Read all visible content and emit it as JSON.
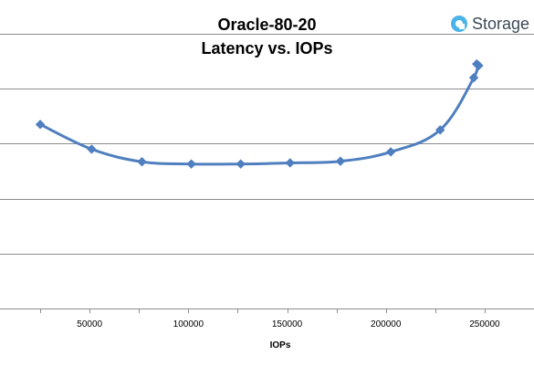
{
  "chart_data": {
    "type": "line",
    "title_lines": [
      "Oracle-80-20",
      "Latency vs. IOPs"
    ],
    "xlabel": "IOPs",
    "ylabel": "",
    "xlim": [
      0,
      275000
    ],
    "ylim": [
      0,
      5
    ],
    "x_ticks": [
      50000,
      100000,
      150000,
      200000,
      250000
    ],
    "y_gridlines": [
      1,
      2,
      3,
      4,
      5
    ],
    "grid": true,
    "legend": "none",
    "series": [
      {
        "color": "#4f7fbf",
        "points": [
          {
            "x": 25000,
            "y": 3.35
          },
          {
            "x": 51000,
            "y": 2.9
          },
          {
            "x": 76500,
            "y": 2.67
          },
          {
            "x": 101500,
            "y": 2.63
          },
          {
            "x": 126500,
            "y": 2.63
          },
          {
            "x": 151500,
            "y": 2.65
          },
          {
            "x": 177000,
            "y": 2.68
          },
          {
            "x": 202500,
            "y": 2.85
          },
          {
            "x": 227500,
            "y": 3.25
          },
          {
            "x": 244500,
            "y": 4.2
          },
          {
            "x": 246000,
            "y": 4.45
          },
          {
            "x": 247000,
            "y": 4.42
          }
        ]
      }
    ]
  },
  "logo": {
    "text": "Storage",
    "icon": "storagereview-logo-icon",
    "color": "#3c4a57",
    "accent": "#4ab3e8"
  }
}
